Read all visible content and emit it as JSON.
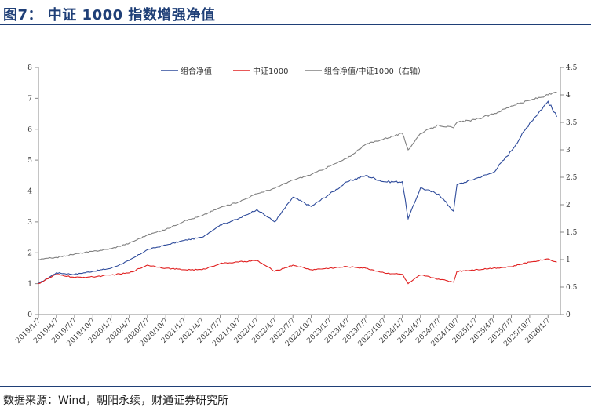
{
  "header": {
    "title": "图7：  中证 1000 指数增强净值"
  },
  "footer": {
    "source": "数据来源：Wind，朝阳永续，财通证券研究所"
  },
  "chart_data": {
    "type": "line",
    "title": "",
    "xlabel": "",
    "ylabel": "",
    "ylim_left": [
      0,
      8
    ],
    "ylim_right": [
      0,
      4.5
    ],
    "left_ticks": [
      "0",
      "1",
      "2",
      "3",
      "4",
      "5",
      "6",
      "7",
      "8"
    ],
    "right_ticks": [
      "0",
      "0.5",
      "1",
      "1.5",
      "2",
      "2.5",
      "3",
      "3.5",
      "4",
      "4.5"
    ],
    "x_ticks": [
      "2019/1/7",
      "2019/4/7",
      "2019/7/7",
      "2019/10/7",
      "2020/1/7",
      "2020/4/7",
      "2020/7/7",
      "2020/10/7",
      "2021/1/7",
      "2021/4/7",
      "2021/7/7",
      "2021/10/7",
      "2022/1/7",
      "2022/4/7",
      "2022/7/7",
      "2022/10/7",
      "2023/1/7",
      "2023/4/7",
      "2023/7/7",
      "2023/10/7",
      "2024/1/7",
      "2024/4/7",
      "2024/7/7",
      "2024/10/7",
      "2025/1/7",
      "2025/4/7",
      "2025/7/7",
      "2025/10/7",
      "2026/1/7"
    ],
    "grid": false,
    "legend_position": "top",
    "x": [
      "2019/1/7",
      "2019/4/7",
      "2019/7/7",
      "2019/10/7",
      "2020/1/7",
      "2020/4/7",
      "2020/7/7",
      "2020/10/7",
      "2021/1/7",
      "2021/4/7",
      "2021/7/7",
      "2021/10/7",
      "2022/1/7",
      "2022/4/7",
      "2022/7/7",
      "2022/10/7",
      "2023/1/7",
      "2023/4/7",
      "2023/7/7",
      "2023/10/7",
      "2024/1/7",
      "2024/2/5",
      "2024/4/7",
      "2024/7/7",
      "2024/9/20",
      "2024/10/7",
      "2025/1/7",
      "2025/4/7",
      "2025/7/7",
      "2025/10/7",
      "2026/1/7",
      "2026/2/20"
    ],
    "series": [
      {
        "name": "组合净值",
        "axis": "left",
        "color": "#2e4b9b",
        "values": [
          1.0,
          1.35,
          1.3,
          1.4,
          1.5,
          1.75,
          2.1,
          2.25,
          2.4,
          2.5,
          2.9,
          3.1,
          3.4,
          3.0,
          3.8,
          3.5,
          3.9,
          4.3,
          4.5,
          4.3,
          4.3,
          3.1,
          4.1,
          3.9,
          3.35,
          4.2,
          4.4,
          4.6,
          5.3,
          6.2,
          6.9,
          6.4
        ]
      },
      {
        "name": "中证1000",
        "axis": "left",
        "color": "#e02020",
        "values": [
          1.0,
          1.3,
          1.2,
          1.22,
          1.28,
          1.35,
          1.6,
          1.5,
          1.45,
          1.45,
          1.65,
          1.7,
          1.75,
          1.4,
          1.6,
          1.45,
          1.5,
          1.55,
          1.5,
          1.35,
          1.3,
          1.0,
          1.28,
          1.15,
          1.05,
          1.4,
          1.45,
          1.5,
          1.55,
          1.7,
          1.8,
          1.7
        ]
      },
      {
        "name": "组合净值/中证1000（右轴）",
        "axis": "right",
        "color": "#808080",
        "values": [
          1.0,
          1.04,
          1.1,
          1.15,
          1.2,
          1.3,
          1.45,
          1.55,
          1.7,
          1.8,
          1.95,
          2.05,
          2.2,
          2.3,
          2.45,
          2.55,
          2.7,
          2.85,
          3.1,
          3.2,
          3.3,
          3.0,
          3.3,
          3.45,
          3.4,
          3.5,
          3.55,
          3.65,
          3.8,
          3.9,
          4.0,
          4.05
        ]
      }
    ]
  }
}
